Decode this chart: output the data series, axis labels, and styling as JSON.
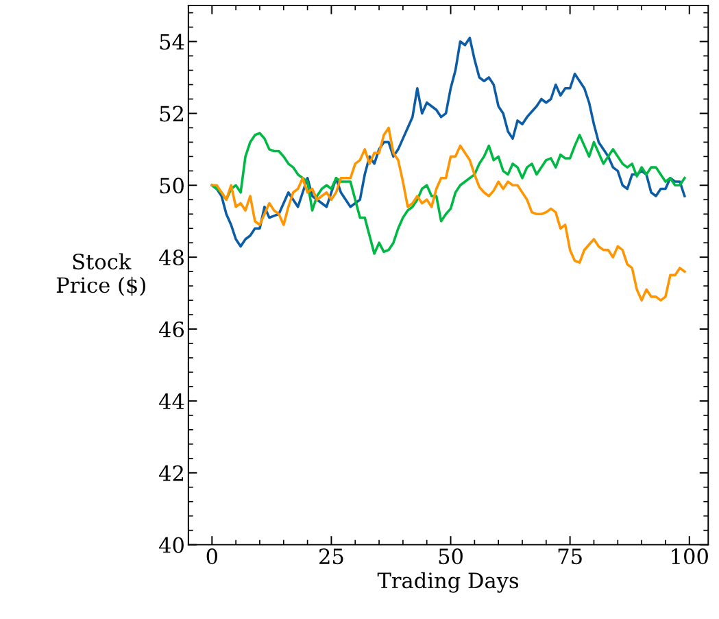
{
  "chart_data": {
    "type": "line",
    "xlabel": "Trading Days",
    "ylabel": "Stock\nPrice ($)",
    "x": [
      0,
      1,
      2,
      3,
      4,
      5,
      6,
      7,
      8,
      9,
      10,
      11,
      12,
      13,
      14,
      15,
      16,
      17,
      18,
      19,
      20,
      21,
      22,
      23,
      24,
      25,
      26,
      27,
      28,
      29,
      30,
      31,
      32,
      33,
      34,
      35,
      36,
      37,
      38,
      39,
      40,
      41,
      42,
      43,
      44,
      45,
      46,
      47,
      48,
      49,
      50,
      51,
      52,
      53,
      54,
      55,
      56,
      57,
      58,
      59,
      60,
      61,
      62,
      63,
      64,
      65,
      66,
      67,
      68,
      69,
      70,
      71,
      72,
      73,
      74,
      75,
      76,
      77,
      78,
      79,
      80,
      81,
      82,
      83,
      84,
      85,
      86,
      87,
      88,
      89,
      90,
      91,
      92,
      93,
      94,
      95,
      96,
      97,
      98,
      99
    ],
    "series": [
      {
        "color": "#0c5da5",
        "values": [
          50.0,
          49.9,
          49.7,
          49.2,
          48.9,
          48.5,
          48.3,
          48.5,
          48.6,
          48.8,
          48.8,
          49.4,
          49.1,
          49.15,
          49.2,
          49.5,
          49.8,
          49.6,
          49.4,
          49.8,
          50.2,
          49.7,
          49.6,
          49.5,
          49.4,
          49.8,
          50.2,
          49.8,
          49.6,
          49.4,
          49.5,
          49.6,
          50.3,
          50.8,
          50.6,
          51.0,
          51.2,
          51.2,
          50.8,
          51.0,
          51.3,
          51.6,
          51.9,
          52.7,
          52.0,
          52.3,
          52.2,
          52.1,
          51.9,
          52.0,
          52.7,
          53.2,
          54.0,
          53.9,
          54.1,
          53.5,
          53.0,
          52.9,
          53.0,
          52.8,
          52.2,
          52.0,
          51.5,
          51.3,
          51.8,
          51.7,
          51.9,
          52.05,
          52.2,
          52.4,
          52.3,
          52.4,
          52.8,
          52.5,
          52.7,
          52.7,
          53.1,
          52.9,
          52.7,
          52.3,
          51.7,
          51.2,
          51.0,
          50.8,
          50.5,
          50.4,
          50.0,
          49.9,
          50.3,
          50.3,
          50.4,
          50.3,
          49.8,
          49.7,
          49.9,
          49.9,
          50.2,
          50.1,
          50.1,
          49.7
        ]
      },
      {
        "color": "#00b945",
        "values": [
          50.0,
          49.9,
          49.8,
          49.6,
          49.9,
          50.0,
          49.8,
          50.8,
          51.2,
          51.4,
          51.45,
          51.3,
          51.0,
          50.95,
          50.95,
          50.8,
          50.6,
          50.5,
          50.3,
          50.2,
          50.1,
          49.3,
          49.7,
          49.9,
          50.0,
          49.9,
          50.2,
          50.1,
          50.1,
          50.1,
          49.6,
          49.1,
          49.1,
          48.6,
          48.1,
          48.4,
          48.15,
          48.2,
          48.4,
          48.8,
          49.1,
          49.3,
          49.4,
          49.6,
          49.9,
          50.0,
          49.7,
          49.7,
          49.0,
          49.2,
          49.35,
          49.8,
          50.0,
          50.1,
          50.2,
          50.3,
          50.6,
          50.8,
          51.1,
          50.7,
          50.8,
          50.4,
          50.3,
          50.6,
          50.5,
          50.2,
          50.5,
          50.6,
          50.3,
          50.5,
          50.7,
          50.75,
          50.5,
          50.85,
          50.75,
          50.75,
          51.1,
          51.4,
          51.1,
          50.8,
          51.2,
          50.9,
          50.6,
          50.8,
          51.0,
          50.8,
          50.6,
          50.5,
          50.6,
          50.25,
          50.5,
          50.3,
          50.5,
          50.5,
          50.3,
          50.1,
          50.2,
          50.0,
          50.0,
          50.2
        ]
      },
      {
        "color": "#ff9500",
        "values": [
          50.0,
          50.0,
          49.8,
          49.6,
          50.0,
          49.4,
          49.5,
          49.3,
          49.7,
          49.0,
          48.9,
          49.2,
          49.5,
          49.3,
          49.2,
          48.9,
          49.4,
          49.8,
          49.9,
          50.2,
          49.8,
          49.9,
          49.6,
          49.7,
          49.8,
          49.6,
          49.8,
          50.2,
          50.2,
          50.2,
          50.6,
          50.7,
          51.0,
          50.6,
          50.9,
          50.9,
          51.4,
          51.6,
          50.9,
          50.7,
          50.1,
          49.4,
          49.5,
          49.7,
          49.5,
          49.6,
          49.4,
          49.9,
          50.2,
          50.2,
          50.8,
          50.8,
          51.1,
          50.9,
          50.7,
          50.3,
          49.95,
          49.8,
          49.7,
          49.85,
          50.1,
          49.9,
          50.1,
          50.0,
          50.0,
          49.8,
          49.6,
          49.25,
          49.2,
          49.2,
          49.25,
          49.35,
          49.25,
          48.8,
          48.9,
          48.2,
          47.9,
          47.85,
          48.2,
          48.35,
          48.5,
          48.3,
          48.2,
          48.2,
          48.0,
          48.3,
          48.2,
          47.8,
          47.7,
          47.1,
          46.8,
          47.1,
          46.9,
          46.9,
          46.8,
          46.9,
          47.5,
          47.5,
          47.7,
          47.6
        ]
      }
    ],
    "xlim": [
      -4.95,
      103.95
    ],
    "xticks": [
      0,
      25,
      50,
      75,
      100
    ],
    "ylim": [
      40,
      55
    ],
    "yticks": [
      40,
      42,
      44,
      46,
      48,
      50,
      52,
      54
    ],
    "grid": false,
    "line_style": "solid",
    "marker": "none"
  }
}
